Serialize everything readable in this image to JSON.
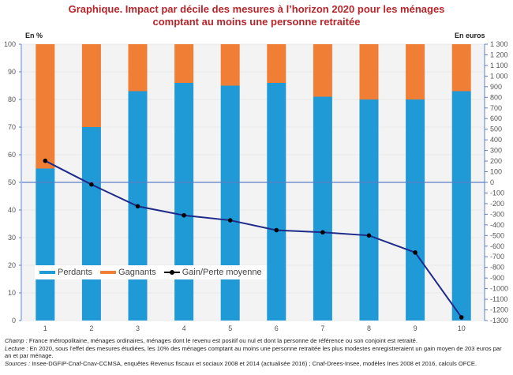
{
  "chart_data": {
    "type": "bar",
    "title_line1": "Graphique. Impact par décile des mesures à l’horizon 2020 pour les ménages",
    "title_line2": "comptant au moins une personne retraitée",
    "left_unit": "En %",
    "right_unit": "En euros",
    "categories": [
      "1",
      "2",
      "3",
      "4",
      "5",
      "6",
      "7",
      "8",
      "9",
      "10"
    ],
    "series": [
      {
        "name": "Perdants",
        "type": "stacked-bar",
        "axis": "left",
        "color": "#1f9ad6",
        "values": [
          55,
          70,
          83,
          86,
          85,
          86,
          81,
          80,
          80,
          83
        ]
      },
      {
        "name": "Gagnants",
        "type": "stacked-bar",
        "axis": "left",
        "color": "#f07f35",
        "values": [
          45,
          30,
          17,
          14,
          15,
          14,
          19,
          20,
          20,
          17
        ]
      },
      {
        "name": "Gain/Perte moyenne",
        "type": "line",
        "axis": "right",
        "color": "#1e2a8a",
        "marker_color": "#000000",
        "values": [
          203,
          -20,
          -225,
          -310,
          -357,
          -450,
          -470,
          -500,
          -660,
          -1270
        ]
      }
    ],
    "left_axis": {
      "min": 0,
      "max": 100,
      "ticks": [
        0,
        10,
        20,
        30,
        40,
        50,
        60,
        70,
        80,
        90,
        100
      ]
    },
    "right_axis": {
      "min": -1300,
      "max": 1300,
      "step": 100,
      "tick_labels": [
        "1 300",
        "1 200",
        "1 100",
        "1 000",
        "900",
        "800",
        "700",
        "600",
        "500",
        "400",
        "300",
        "200",
        "100",
        "0",
        "-100",
        "-200",
        "-300",
        "-400",
        "-500",
        "-600",
        "-700",
        "-800",
        "-900",
        "-1000",
        "-1100",
        "-1200",
        "-1300"
      ]
    },
    "grid": true,
    "legend_position": "bottom-left-inside"
  },
  "notes": {
    "champ_label": "Champ :",
    "champ_text": " France métropolitaine, ménages ordinaires, ménages dont le revenu est positif ou nul et dont la personne de référence ou son conjoint est retraité.",
    "lecture_label": "Lecture :",
    "lecture_text": " En 2020, sous l’effet des mesures étudiées, les 10% des ménages comptant au moins une personne retraitée les plus modestes enregistreraient un gain moyen de 203 euros par an et par ménage.",
    "sources_label": "Sources :",
    "sources_text": " Insee-DGFiP-Cnaf-Cnav-CCMSA, enquêtes Revenus fiscaux et sociaux 2008 et 2014 (actualisée 2016) ; Cnaf-Drees-Insee, modèles Ines 2008 et 2016, calculs OFCE."
  }
}
